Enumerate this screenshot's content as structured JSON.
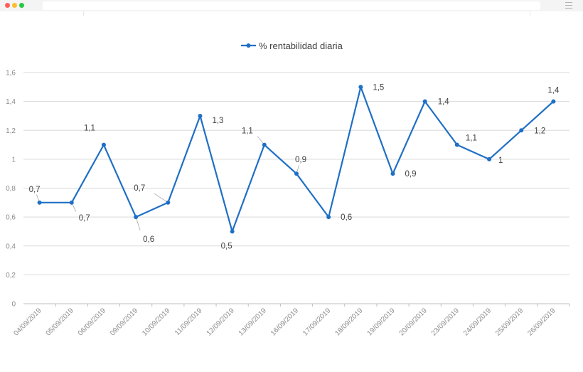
{
  "window": {
    "controls": [
      "close",
      "minimize",
      "maximize"
    ],
    "menu_icon": "hamburger-menu-icon"
  },
  "colors": {
    "series": "#1f6fc5",
    "grid": "#d9d9d9",
    "axis_text": "#8c8c8c",
    "label_text": "#404040"
  },
  "chart_data": {
    "type": "line",
    "title": "",
    "legend": {
      "placement": "top-center",
      "entries": [
        "% rentabilidad diaria"
      ]
    },
    "xlabel": "",
    "ylabel": "",
    "ylim": [
      0,
      1.6
    ],
    "yticks": [
      "0",
      "0,2",
      "0,4",
      "0,6",
      "0,8",
      "1",
      "1,2",
      "1,4",
      "1,6"
    ],
    "grid": true,
    "categories": [
      "04/09/2019",
      "05/09/2019",
      "06/09/2019",
      "09/09/2019",
      "10/09/2019",
      "11/09/2019",
      "12/09/2019",
      "13/09/2019",
      "16/09/2019",
      "17/09/2019",
      "18/09/2019",
      "19/09/2019",
      "20/09/2019",
      "23/09/2019",
      "24/09/2019",
      "25/09/2019",
      "26/09/2019"
    ],
    "series": [
      {
        "name": "% rentabilidad diaria",
        "values": [
          0.7,
          0.7,
          1.1,
          0.6,
          0.7,
          1.3,
          0.5,
          1.1,
          0.9,
          0.6,
          1.5,
          0.9,
          1.4,
          1.1,
          1.0,
          1.2,
          1.4
        ],
        "data_labels": [
          "0,7",
          "0,7",
          "1,1",
          "0,6",
          "0,7",
          "1,3",
          "0,5",
          "1,1",
          "0,9",
          "0,6",
          "1,5",
          "0,9",
          "1,4",
          "1,1",
          "1",
          "1,2",
          "1,4"
        ]
      }
    ]
  }
}
